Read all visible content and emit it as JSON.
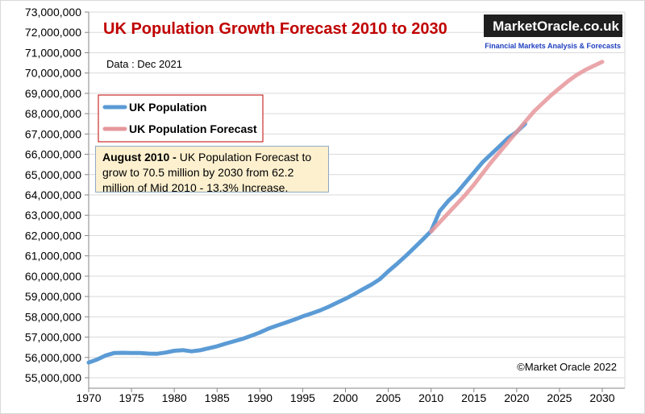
{
  "chart_data": {
    "type": "line",
    "title": "UK Population Growth Forecast 2010 to 2030",
    "subtitle": "Data : Dec 2021",
    "logo": {
      "name": "MarketOracle.co.uk",
      "tagline": "Financial Markets Analysis & Forecasts"
    },
    "annotation": {
      "lead": "August 2010 -",
      "text": " UK Population Forecast to grow to 70.5  million by 2030 from 62.2 million of Mid 2010 - 13.3% Increase."
    },
    "credit": "©Market Oracle 2022",
    "x": [
      1970,
      1971,
      1972,
      1973,
      1974,
      1975,
      1976,
      1977,
      1978,
      1979,
      1980,
      1981,
      1982,
      1983,
      1984,
      1985,
      1986,
      1987,
      1988,
      1989,
      1990,
      1991,
      1992,
      1993,
      1994,
      1995,
      1996,
      1997,
      1998,
      1999,
      2000,
      2001,
      2002,
      2003,
      2004,
      2005,
      2006,
      2007,
      2008,
      2009,
      2010,
      2011,
      2012,
      2013,
      2014,
      2015,
      2016,
      2017,
      2018,
      2019,
      2020,
      2021,
      2022,
      2023,
      2024,
      2025,
      2026,
      2027,
      2028,
      2029,
      2030
    ],
    "series": [
      {
        "name": "UK Population",
        "color": "#5b9bd5",
        "values": [
          55750000,
          55900000,
          56100000,
          56220000,
          56230000,
          56220000,
          56220000,
          56190000,
          56180000,
          56240000,
          56330000,
          56360000,
          56300000,
          56350000,
          56450000,
          56550000,
          56680000,
          56800000,
          56920000,
          57070000,
          57230000,
          57420000,
          57570000,
          57710000,
          57860000,
          58020000,
          58160000,
          58310000,
          58490000,
          58690000,
          58890000,
          59110000,
          59350000,
          59580000,
          59850000,
          60240000,
          60600000,
          60980000,
          61380000,
          61790000,
          62220000,
          63200000,
          63700000,
          64100000,
          64600000,
          65100000,
          65600000,
          66000000,
          66400000,
          66800000,
          67100000,
          67500000,
          null,
          null,
          null,
          null,
          null,
          null,
          null,
          null,
          null
        ]
      },
      {
        "name": "UK Population Forecast",
        "color": "#e6979b",
        "values": [
          null,
          null,
          null,
          null,
          null,
          null,
          null,
          null,
          null,
          null,
          null,
          null,
          null,
          null,
          null,
          null,
          null,
          null,
          null,
          null,
          null,
          null,
          null,
          null,
          null,
          null,
          null,
          null,
          null,
          null,
          null,
          null,
          null,
          null,
          null,
          null,
          null,
          null,
          null,
          null,
          62200000,
          62650000,
          63100000,
          63550000,
          64000000,
          64500000,
          65050000,
          65600000,
          66100000,
          66600000,
          67100000,
          67600000,
          68100000,
          68500000,
          68900000,
          69250000,
          69600000,
          69900000,
          70150000,
          70350000,
          70550000
        ]
      }
    ],
    "xlim": [
      1970,
      2030
    ],
    "xticks": [
      1970,
      1975,
      1980,
      1985,
      1990,
      1995,
      2000,
      2005,
      2010,
      2015,
      2020,
      2025,
      2030
    ],
    "ylim": [
      55000000,
      73000000
    ],
    "yticks": [
      {
        "value": 55000000,
        "label": "55,000,000"
      },
      {
        "value": 56000000,
        "label": "56,000,000"
      },
      {
        "value": 57000000,
        "label": "57,000,000"
      },
      {
        "value": 58000000,
        "label": "58,000,000"
      },
      {
        "value": 59000000,
        "label": "59,000,000"
      },
      {
        "value": 60000000,
        "label": "60,000,000"
      },
      {
        "value": 61000000,
        "label": "61,000,000"
      },
      {
        "value": 62000000,
        "label": "62,000,000"
      },
      {
        "value": 63000000,
        "label": "63,000,000"
      },
      {
        "value": 64000000,
        "label": "64,000,000"
      },
      {
        "value": 65000000,
        "label": "65,000,000"
      },
      {
        "value": 66000000,
        "label": "66,000,000"
      },
      {
        "value": 67000000,
        "label": "67,000,000"
      },
      {
        "value": 68000000,
        "label": "68,000,000"
      },
      {
        "value": 69000000,
        "label": "69,000,000"
      },
      {
        "value": 70000000,
        "label": "70,000,000"
      },
      {
        "value": 71000000,
        "label": "71,000,000"
      },
      {
        "value": 72000000,
        "label": "72,000,000"
      },
      {
        "value": 73000000,
        "label": "73,000,000"
      }
    ],
    "grid": true
  }
}
